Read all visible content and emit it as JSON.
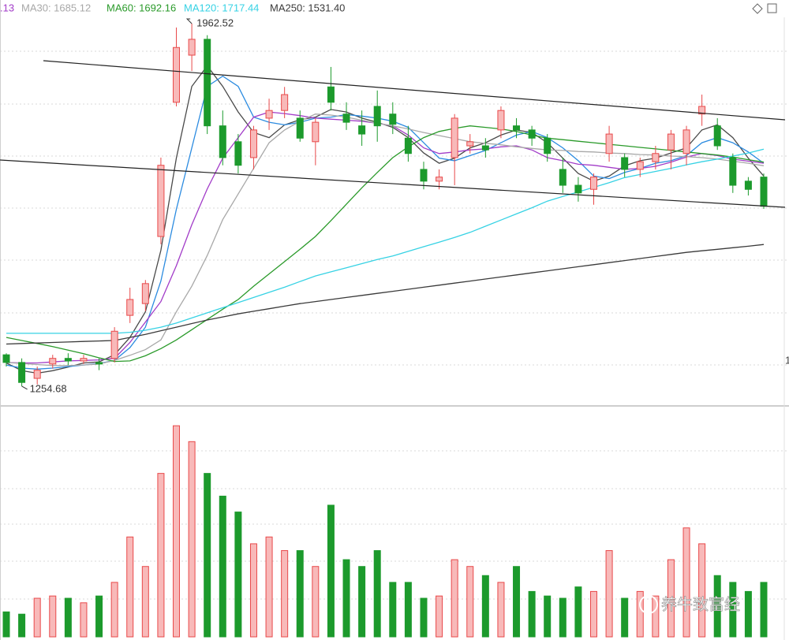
{
  "chart_data": [
    {
      "type": "candlestick",
      "ylim": [
        1216.2,
        2008.7
      ],
      "up_color": "#e8494a",
      "up_fill": "#f8b9b9",
      "down_color": "#1c9a2c",
      "open": [
        1316,
        1301,
        1270,
        1298,
        1309,
        1304,
        1301,
        1309,
        1393,
        1416,
        1547,
        1809,
        1901,
        1932,
        1763,
        1732,
        1701,
        1778,
        1793,
        1778,
        1732,
        1839,
        1786,
        1763,
        1801,
        1786,
        1739,
        1678,
        1655,
        1701,
        1724,
        1724,
        1755,
        1763,
        1755,
        1739,
        1678,
        1647,
        1639,
        1709,
        1701,
        1678,
        1693,
        1716,
        1709,
        1786,
        1763,
        1701,
        1655,
        1663
      ],
      "high": [
        1319,
        1309,
        1293,
        1316,
        1319,
        1316,
        1309,
        1370,
        1447,
        1462,
        1701,
        1955,
        1962.52,
        1940,
        1793,
        1747,
        1763,
        1816,
        1839,
        1793,
        1778,
        1878,
        1809,
        1793,
        1832,
        1809,
        1763,
        1693,
        1678,
        1786,
        1747,
        1739,
        1801,
        1778,
        1763,
        1747,
        1701,
        1663,
        1670,
        1763,
        1709,
        1701,
        1724,
        1755,
        1763,
        1824,
        1778,
        1709,
        1663,
        1670
      ],
      "low": [
        1293,
        1254.68,
        1258,
        1289,
        1296,
        1298,
        1286,
        1301,
        1378,
        1401,
        1532,
        1801,
        1870,
        1747,
        1686,
        1670,
        1678,
        1755,
        1778,
        1732,
        1686,
        1793,
        1755,
        1724,
        1732,
        1747,
        1693,
        1639,
        1639,
        1647,
        1709,
        1701,
        1739,
        1739,
        1724,
        1693,
        1632,
        1615,
        1609,
        1693,
        1663,
        1663,
        1678,
        1678,
        1686,
        1763,
        1716,
        1632,
        1627,
        1601
      ],
      "close": [
        1301,
        1262,
        1286,
        1309,
        1304,
        1309,
        1298,
        1362,
        1424,
        1455,
        1686,
        1916,
        1932,
        1763,
        1701,
        1686,
        1755,
        1793,
        1824,
        1739,
        1770,
        1809,
        1770,
        1747,
        1763,
        1766,
        1709,
        1655,
        1663,
        1778,
        1732,
        1716,
        1793,
        1755,
        1739,
        1709,
        1647,
        1632,
        1663,
        1747,
        1678,
        1693,
        1709,
        1747,
        1755,
        1801,
        1724,
        1647,
        1639,
        1606
      ],
      "lines": [
        {
          "color": "#4a4a4a",
          "values": [
            1300,
            1285,
            1280,
            1285,
            1292,
            1300,
            1302,
            1316,
            1350,
            1400,
            1520,
            1700,
            1840,
            1880,
            1840,
            1790,
            1750,
            1740,
            1765,
            1775,
            1780,
            1795,
            1790,
            1778,
            1770,
            1760,
            1740,
            1710,
            1690,
            1700,
            1720,
            1730,
            1745,
            1755,
            1750,
            1730,
            1700,
            1670,
            1655,
            1665,
            1685,
            1695,
            1700,
            1710,
            1720,
            1755,
            1765,
            1740,
            1700,
            1665
          ]
        },
        {
          "color": "#2b8be0",
          "values": [
            1296,
            1290,
            1288,
            1290,
            1293,
            1296,
            1299,
            1305,
            1330,
            1370,
            1460,
            1600,
            1720,
            1840,
            1860,
            1840,
            1780,
            1770,
            1765,
            1770,
            1778,
            1780,
            1785,
            1782,
            1778,
            1772,
            1760,
            1730,
            1700,
            1695,
            1705,
            1715,
            1730,
            1745,
            1752,
            1740,
            1720,
            1695,
            1665,
            1660,
            1672,
            1680,
            1690,
            1695,
            1705,
            1730,
            1740,
            1730,
            1712,
            1690
          ]
        },
        {
          "color": "#a23cc8",
          "label": ".13",
          "values": [
            1301,
            1300,
            1300,
            1302,
            1304,
            1305,
            1306,
            1309,
            1340,
            1380,
            1420,
            1490,
            1570,
            1640,
            1700,
            1740,
            1780,
            1790,
            1787,
            1783,
            1778,
            1776,
            1774,
            1772,
            1768,
            1763,
            1745,
            1720,
            1709,
            1712,
            1716,
            1718,
            1722,
            1724,
            1716,
            1701,
            1695,
            1688,
            1686,
            1682,
            1678,
            1680,
            1684,
            1692,
            1702,
            1709,
            1705,
            1698,
            1694,
            1690
          ]
        },
        {
          "color": "#a8a8a8",
          "label": "MA30: 1685.12",
          "values": [
            1301,
            1299,
            1297,
            1295,
            1295,
            1296,
            1298,
            1305,
            1315,
            1326,
            1345,
            1400,
            1450,
            1510,
            1580,
            1630,
            1680,
            1730,
            1755,
            1772,
            1786,
            1784,
            1780,
            1774,
            1768,
            1763,
            1757,
            1750,
            1744,
            1738,
            1732,
            1729,
            1726,
            1722,
            1719,
            1716,
            1715,
            1713,
            1712,
            1710,
            1709,
            1707,
            1706,
            1704,
            1703,
            1701,
            1698,
            1694,
            1690,
            1685.12
          ]
        },
        {
          "color": "#2a9a2a",
          "label": "MA60: 1692.16",
          "values": [
            1350,
            1344,
            1338,
            1332,
            1325,
            1318,
            1310,
            1303,
            1304,
            1314,
            1328,
            1345,
            1365,
            1385,
            1405,
            1424,
            1450,
            1474,
            1498,
            1522,
            1547,
            1578,
            1610,
            1642,
            1672,
            1701,
            1722,
            1740,
            1752,
            1758,
            1763,
            1760,
            1757,
            1752,
            1745,
            1739,
            1736,
            1733,
            1730,
            1727,
            1724,
            1721,
            1718,
            1715,
            1712,
            1709,
            1706,
            1702,
            1697,
            1692.16
          ]
        },
        {
          "color": "#36d2e4",
          "label": "MA120: 1717.44",
          "values": [
            1358,
            1358,
            1358,
            1358,
            1358,
            1358,
            1358,
            1358,
            1360,
            1364,
            1370,
            1378,
            1388,
            1398,
            1408,
            1418,
            1428,
            1438,
            1448,
            1459,
            1470,
            1478,
            1486,
            1494,
            1502,
            1509,
            1518,
            1527,
            1536,
            1545,
            1555,
            1567,
            1579,
            1591,
            1603,
            1616,
            1625,
            1634,
            1643,
            1652,
            1662,
            1668,
            1674,
            1680,
            1687,
            1693,
            1698,
            1704,
            1710,
            1717.44
          ]
        },
        {
          "color": "#3a3a3a",
          "label": "MA250: 1531.40",
          "values": [
            1337,
            1338,
            1339,
            1340,
            1341,
            1342,
            1343,
            1344,
            1350,
            1356,
            1363,
            1370,
            1377,
            1384,
            1390,
            1396,
            1401,
            1406,
            1411,
            1416,
            1420,
            1424,
            1428,
            1432,
            1436,
            1440,
            1444,
            1448,
            1452,
            1456,
            1460,
            1464,
            1468,
            1472,
            1476,
            1480,
            1484,
            1488,
            1492,
            1496,
            1500,
            1504,
            1508,
            1512,
            1516,
            1519,
            1522,
            1525,
            1528,
            1531.4
          ]
        }
      ],
      "annotations": [
        1962.52,
        1254.68
      ],
      "axis_fragment": "1"
    },
    {
      "type": "bar",
      "ylim": [
        0,
        100
      ],
      "values": [
        11,
        10,
        17,
        18,
        17,
        15,
        18,
        24,
        44,
        31,
        72,
        93,
        86,
        72,
        62,
        55,
        41,
        44,
        38,
        38,
        31,
        58,
        34,
        31,
        38,
        24,
        24,
        17,
        18,
        34,
        31,
        27,
        24,
        31,
        20,
        18,
        17,
        22,
        20,
        38,
        17,
        20,
        18,
        34,
        48,
        41,
        27,
        24,
        20,
        24
      ]
    }
  ],
  "watermark": "养牛致富经"
}
